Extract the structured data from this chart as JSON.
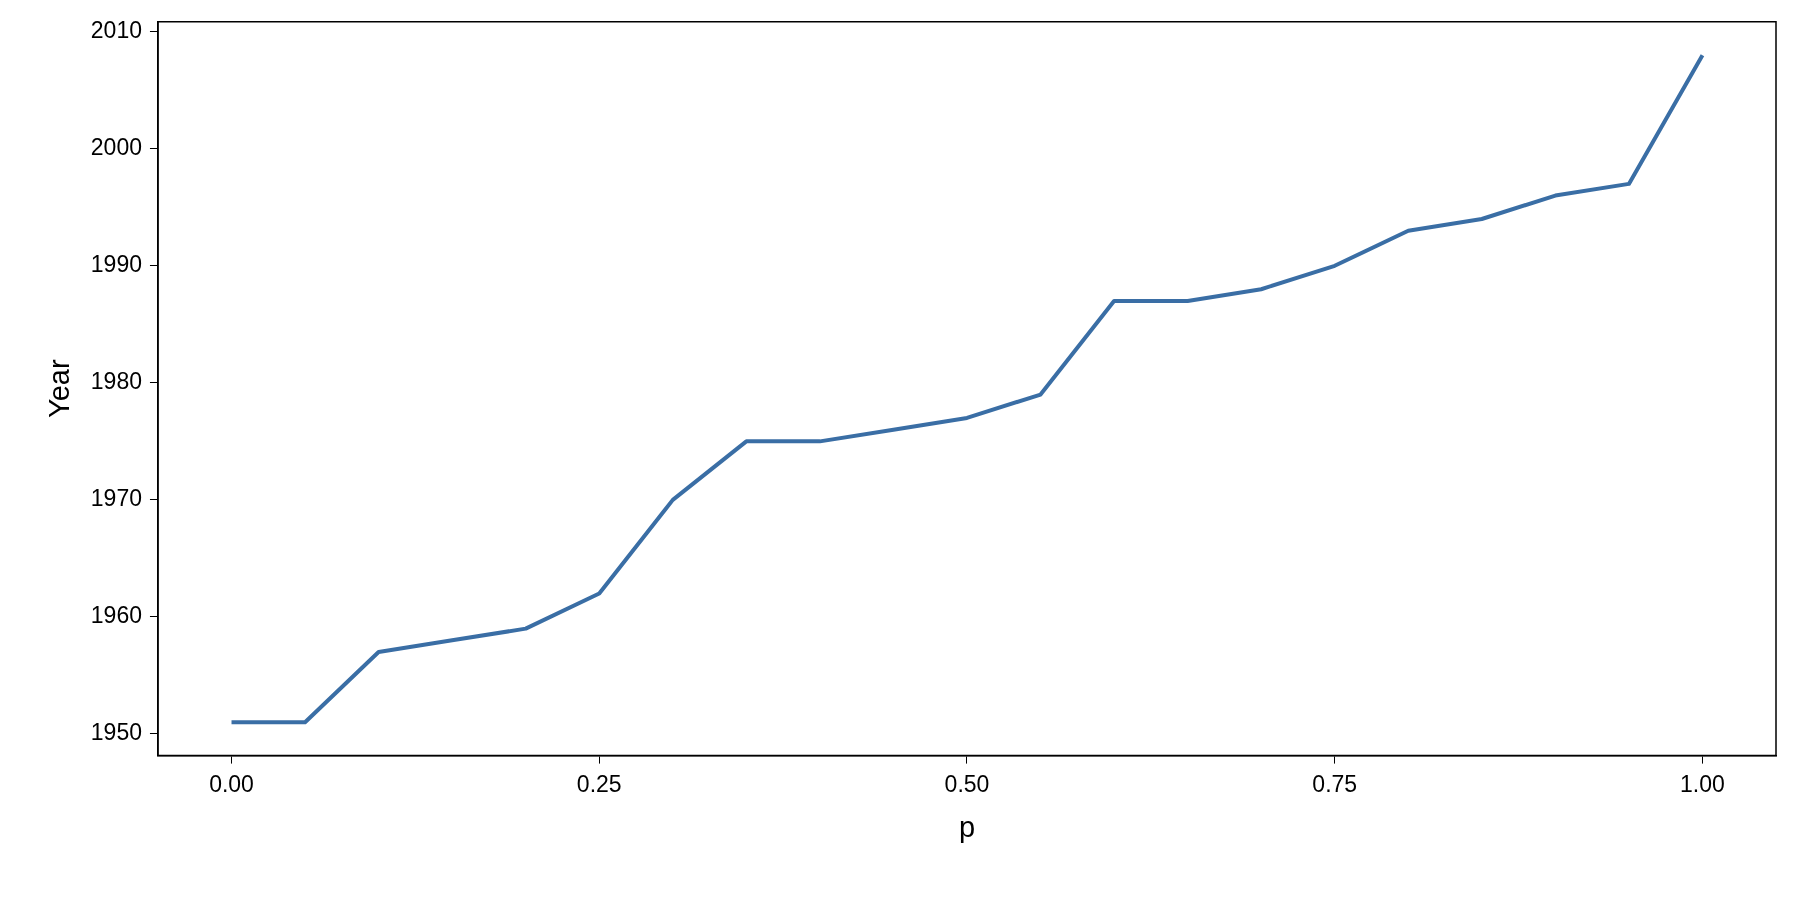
{
  "chart_data": {
    "type": "line",
    "xlabel": "p",
    "ylabel": "Year",
    "x": [
      0,
      0.05,
      0.1,
      0.15,
      0.2,
      0.25,
      0.3,
      0.35,
      0.4,
      0.45,
      0.5,
      0.55,
      0.6,
      0.65,
      0.7,
      0.75,
      0.8,
      0.85,
      0.9,
      0.95,
      1.0
    ],
    "series": [
      {
        "color": "#3a6ea5",
        "values": [
          1951,
          1951,
          1957,
          1958,
          1959,
          1962,
          1970,
          1975,
          1975,
          1976,
          1977,
          1979,
          1987,
          1987,
          1988,
          1990,
          1993,
          1994,
          1996,
          1997,
          2008
        ]
      }
    ],
    "xlim": [
      -0.05,
      1.05
    ],
    "xticks": [
      {
        "value": 0,
        "label": "0.00"
      },
      {
        "value": 0.25,
        "label": "0.25"
      },
      {
        "value": 0.5,
        "label": "0.50"
      },
      {
        "value": 0.75,
        "label": "0.75"
      },
      {
        "value": 1,
        "label": "1.00"
      }
    ],
    "ylim": [
      1948.15,
      2010.85
    ],
    "yticks": [
      1950,
      1960,
      1970,
      1980,
      1990,
      2000,
      2010
    ],
    "grid": false,
    "legend": false,
    "marker": "none",
    "line_style": "solid"
  }
}
